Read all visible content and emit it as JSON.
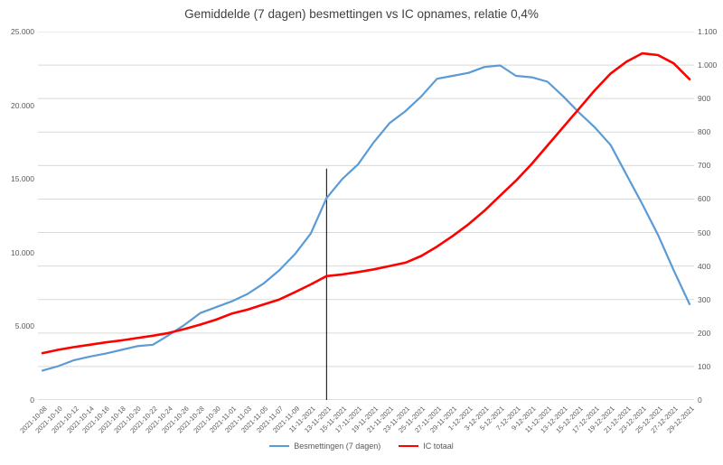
{
  "title": "Gemiddelde (7 dagen) besmettingen vs IC opnames, relatie 0,4%",
  "chart_data": {
    "type": "line",
    "x": [
      "2021-10-08",
      "2021-10-10",
      "2021-10-12",
      "2021-10-14",
      "2021-10-16",
      "2021-10-18",
      "2021-10-20",
      "2021-10-22",
      "2021-10-24",
      "2021-10-26",
      "2021-10-28",
      "2021-10-30",
      "2021-11-01",
      "2021-11-03",
      "2021-11-05",
      "2021-11-07",
      "2021-11-09",
      "11-11-2021",
      "13-11-2021",
      "15-11-2021",
      "17-11-2021",
      "19-11-2021",
      "21-11-2021",
      "23-11-2021",
      "25-11-2021",
      "27-11-2021",
      "29-11-2021",
      "1-12-2021",
      "3-12-2021",
      "5-12-2021",
      "7-12-2021",
      "9-12-2021",
      "11-12-2021",
      "13-12-2021",
      "15-12-2021",
      "17-12-2021",
      "19-12-2021",
      "21-12-2021",
      "23-12-2021",
      "25-12-2021",
      "27-12-2021",
      "29-12-2021"
    ],
    "series": [
      {
        "name": "Besmettingen (7 dagen)",
        "color": "#5b9bd5",
        "axis": "left",
        "values": [
          2000,
          2300,
          2700,
          2950,
          3150,
          3400,
          3650,
          3750,
          4400,
          5100,
          5900,
          6300,
          6700,
          7200,
          7900,
          8800,
          9900,
          11300,
          13700,
          15000,
          16000,
          17500,
          18800,
          19600,
          20600,
          21800,
          22000,
          22200,
          22600,
          22700,
          22000,
          21900,
          21600,
          20600,
          19500,
          18500,
          17300,
          15300,
          13300,
          11200,
          8800,
          6500
        ]
      },
      {
        "name": "IC totaal",
        "color": "#ff0000",
        "axis": "right",
        "values": [
          140,
          150,
          158,
          165,
          172,
          178,
          185,
          192,
          200,
          212,
          225,
          240,
          258,
          270,
          285,
          300,
          322,
          345,
          370,
          375,
          382,
          390,
          400,
          410,
          430,
          458,
          490,
          525,
          565,
          610,
          655,
          705,
          760,
          815,
          870,
          925,
          975,
          1010,
          1035,
          1030,
          1005,
          958
        ]
      }
    ],
    "left_axis": {
      "min": 0,
      "max": 25000,
      "step": 5000,
      "tick_labels": [
        "0",
        "5.000",
        "10.000",
        "15.000",
        "20.000",
        "25.000"
      ]
    },
    "right_axis": {
      "min": 0,
      "max": 1100,
      "step": 100,
      "tick_labels": [
        "0",
        "100",
        "200",
        "300",
        "400",
        "500",
        "600",
        "700",
        "800",
        "900",
        "1.000",
        "1.100"
      ]
    },
    "grid": "horizontal gridlines at every right-axis tick (step 100)",
    "legend_position": "bottom",
    "annotation_vline": {
      "x_label": "13-11-2021",
      "x_index": 18,
      "from_left_value": 15700,
      "to_left_value": 0,
      "color": "#000000"
    }
  },
  "colors": {
    "grid": "#d9d9d9",
    "axis_line": "#bfbfbf",
    "tick_text": "#595959",
    "title_text": "#3f3f3f",
    "background": "#ffffff"
  }
}
